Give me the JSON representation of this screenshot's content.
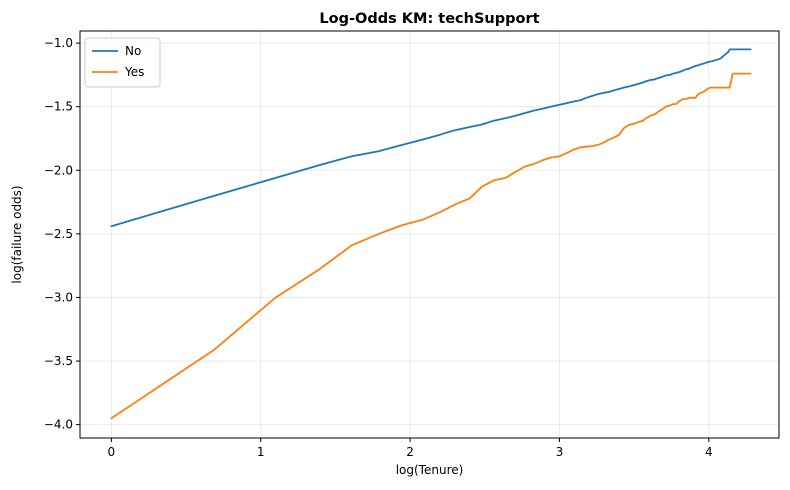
{
  "chart_data": {
    "type": "line",
    "title": "Log-Odds KM: techSupport",
    "xlabel": "log(Tenure)",
    "ylabel": "log(failure odds)",
    "xlim": [
      -0.21,
      4.47
    ],
    "ylim": [
      -4.105,
      -0.905
    ],
    "xticks": [
      0,
      1,
      2,
      3,
      4
    ],
    "yticks": [
      -4.0,
      -3.5,
      -3.0,
      -2.5,
      -2.0,
      -1.5,
      -1.0
    ],
    "xtick_labels": [
      "0",
      "1",
      "2",
      "3",
      "4"
    ],
    "ytick_labels": [
      "−4.0",
      "−3.5",
      "−3.0",
      "−2.5",
      "−2.0",
      "−1.5",
      "−1.0"
    ],
    "grid": true,
    "legend_position": "top-left",
    "series": [
      {
        "name": "No",
        "color": "#1f77b4",
        "x": [
          0,
          0.69,
          1.1,
          1.39,
          1.61,
          1.79,
          1.95,
          2.08,
          2.2,
          2.3,
          2.4,
          2.48,
          2.56,
          2.64,
          2.71,
          2.77,
          2.83,
          2.89,
          2.94,
          3.0,
          3.04,
          3.09,
          3.14,
          3.18,
          3.22,
          3.26,
          3.3,
          3.33,
          3.37,
          3.4,
          3.43,
          3.47,
          3.5,
          3.53,
          3.56,
          3.58,
          3.61,
          3.64,
          3.66,
          3.69,
          3.71,
          3.74,
          3.76,
          3.78,
          3.81,
          3.83,
          3.85,
          3.87,
          3.89,
          3.91,
          3.93,
          3.95,
          3.97,
          3.99,
          4.01,
          4.03,
          4.04,
          4.06,
          4.08,
          4.09,
          4.11,
          4.13,
          4.14,
          4.16,
          4.17,
          4.19,
          4.2,
          4.22,
          4.23,
          4.25,
          4.26,
          4.28
        ],
        "y": [
          -2.44,
          -2.2,
          -2.06,
          -1.96,
          -1.89,
          -1.85,
          -1.8,
          -1.76,
          -1.72,
          -1.685,
          -1.66,
          -1.64,
          -1.61,
          -1.59,
          -1.57,
          -1.55,
          -1.53,
          -1.515,
          -1.5,
          -1.485,
          -1.475,
          -1.46,
          -1.45,
          -1.43,
          -1.415,
          -1.4,
          -1.39,
          -1.385,
          -1.37,
          -1.36,
          -1.35,
          -1.34,
          -1.33,
          -1.32,
          -1.31,
          -1.3,
          -1.29,
          -1.285,
          -1.275,
          -1.265,
          -1.255,
          -1.25,
          -1.24,
          -1.235,
          -1.225,
          -1.215,
          -1.205,
          -1.2,
          -1.19,
          -1.18,
          -1.175,
          -1.165,
          -1.16,
          -1.15,
          -1.145,
          -1.14,
          -1.135,
          -1.13,
          -1.12,
          -1.11,
          -1.09,
          -1.07,
          -1.05,
          -1.05,
          -1.05,
          -1.05,
          -1.05,
          -1.05,
          -1.05,
          -1.05,
          -1.05,
          -1.05
        ]
      },
      {
        "name": "Yes",
        "color": "#ff7f0e",
        "x": [
          0,
          0.69,
          1.1,
          1.39,
          1.61,
          1.79,
          1.95,
          2.08,
          2.2,
          2.3,
          2.4,
          2.48,
          2.56,
          2.64,
          2.71,
          2.77,
          2.83,
          2.89,
          2.94,
          3.0,
          3.04,
          3.09,
          3.14,
          3.18,
          3.22,
          3.26,
          3.3,
          3.33,
          3.37,
          3.4,
          3.43,
          3.47,
          3.5,
          3.53,
          3.56,
          3.58,
          3.61,
          3.64,
          3.66,
          3.69,
          3.71,
          3.74,
          3.76,
          3.78,
          3.81,
          3.83,
          3.85,
          3.87,
          3.89,
          3.91,
          3.93,
          3.95,
          3.97,
          3.99,
          4.01,
          4.03,
          4.04,
          4.06,
          4.08,
          4.09,
          4.11,
          4.13,
          4.14,
          4.16,
          4.17,
          4.19,
          4.2,
          4.22,
          4.23,
          4.25,
          4.26,
          4.28
        ],
        "y": [
          -3.95,
          -3.41,
          -3.0,
          -2.78,
          -2.59,
          -2.5,
          -2.43,
          -2.39,
          -2.33,
          -2.27,
          -2.22,
          -2.13,
          -2.08,
          -2.06,
          -2.01,
          -1.97,
          -1.95,
          -1.92,
          -1.9,
          -1.89,
          -1.87,
          -1.84,
          -1.82,
          -1.815,
          -1.81,
          -1.8,
          -1.78,
          -1.76,
          -1.74,
          -1.72,
          -1.67,
          -1.64,
          -1.635,
          -1.62,
          -1.61,
          -1.59,
          -1.57,
          -1.56,
          -1.54,
          -1.52,
          -1.5,
          -1.49,
          -1.48,
          -1.48,
          -1.45,
          -1.44,
          -1.44,
          -1.43,
          -1.43,
          -1.43,
          -1.4,
          -1.39,
          -1.38,
          -1.36,
          -1.35,
          -1.35,
          -1.35,
          -1.35,
          -1.35,
          -1.35,
          -1.35,
          -1.35,
          -1.35,
          -1.24,
          -1.24,
          -1.24,
          -1.24,
          -1.24,
          -1.24,
          -1.24,
          -1.24,
          -1.24
        ]
      }
    ]
  }
}
